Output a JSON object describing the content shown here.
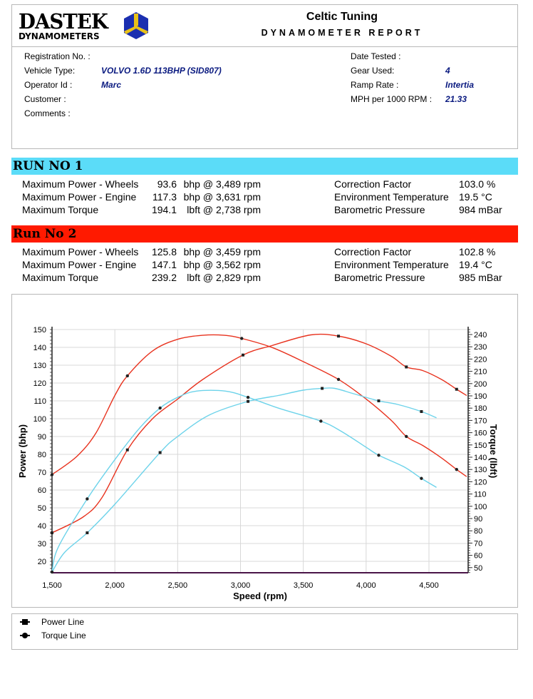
{
  "header": {
    "logo_text": "DASTEK",
    "logo_sub": "DYNAMOMETERS",
    "company": "Celtic Tuning",
    "report_title": "DYNAMOMETER REPORT"
  },
  "info": {
    "left": [
      {
        "label": "Registration No. :",
        "value": ""
      },
      {
        "label": "Vehicle Type:",
        "value": "VOLVO 1.6D 113BHP (SID807)"
      },
      {
        "label": "Operator Id :",
        "value": "Marc"
      },
      {
        "label": "Customer :",
        "value": ""
      },
      {
        "label": "Comments :",
        "value": ""
      }
    ],
    "right": [
      {
        "label": "Date Tested :",
        "value": ""
      },
      {
        "label": "Gear Used:",
        "value": "4"
      },
      {
        "label": "Ramp Rate :",
        "value": "Intertia"
      },
      {
        "label": "MPH per 1000 RPM :",
        "value": "21.33"
      }
    ]
  },
  "runs": [
    {
      "title": "RUN NO 1",
      "color": "#5bdcf8",
      "stats": [
        {
          "label": "Maximum Power - Wheels",
          "value": "93.6",
          "unit": "bhp @ 3,489 rpm"
        },
        {
          "label": "Maximum Power - Engine",
          "value": "117.3",
          "unit": "bhp @ 3,631 rpm"
        },
        {
          "label": "Maximum Torque",
          "value": "194.1",
          "unit": "lbft @ 2,738 rpm"
        }
      ],
      "env": [
        {
          "label": "Correction Factor",
          "value": "103.0 %"
        },
        {
          "label": "Environment Temperature",
          "value": "19.5 °C"
        },
        {
          "label": "Barometric Pressure",
          "value": "984 mBar"
        }
      ]
    },
    {
      "title": "Run No 2",
      "color": "#ff1a00",
      "stats": [
        {
          "label": "Maximum Power - Wheels",
          "value": "125.8",
          "unit": "bhp @ 3,459 rpm"
        },
        {
          "label": "Maximum Power - Engine",
          "value": "147.1",
          "unit": "bhp @ 3,562 rpm"
        },
        {
          "label": "Maximum Torque",
          "value": "239.2",
          "unit": "lbft @ 2,829 rpm"
        }
      ],
      "env": [
        {
          "label": "Correction Factor",
          "value": "102.8 %"
        },
        {
          "label": "Environment Temperature",
          "value": "19.4 °C"
        },
        {
          "label": "Barometric Pressure",
          "value": "985 mBar"
        }
      ]
    }
  ],
  "chart_data": {
    "type": "line",
    "xlabel": "Speed (rpm)",
    "ylabel": "Power (bhp)",
    "y2label": "Torque (lbft)",
    "xlim": [
      1500,
      4810
    ],
    "ylim": [
      13.6,
      150
    ],
    "y2lim": [
      46,
      244
    ],
    "xticks": [
      1500,
      2000,
      2500,
      3000,
      3500,
      4000,
      4500
    ],
    "xtick_labels": [
      "1,500",
      "2,000",
      "2,500",
      "3,000",
      "3,500",
      "4,000",
      "4,500"
    ],
    "yticks": [
      20,
      30,
      40,
      50,
      60,
      70,
      80,
      90,
      100,
      110,
      120,
      130,
      140,
      150
    ],
    "y2ticks": [
      50,
      60,
      70,
      80,
      90,
      100,
      110,
      120,
      130,
      140,
      150,
      160,
      170,
      180,
      190,
      200,
      210,
      220,
      230,
      240
    ],
    "grid": true,
    "series": [
      {
        "run": "Run No 2",
        "kind": "power",
        "axis": "left",
        "color": "#e8321e",
        "markers": [
          1500,
          2100,
          3020,
          3780,
          4320,
          4720
        ],
        "points": [
          [
            1500,
            36
          ],
          [
            1750,
            45
          ],
          [
            1900,
            56
          ],
          [
            2100,
            82.5
          ],
          [
            2300,
            100
          ],
          [
            2500,
            111
          ],
          [
            2700,
            122
          ],
          [
            3020,
            135.7
          ],
          [
            3250,
            141
          ],
          [
            3560,
            147
          ],
          [
            3780,
            146.3
          ],
          [
            4000,
            142
          ],
          [
            4200,
            135
          ],
          [
            4320,
            129
          ],
          [
            4450,
            127
          ],
          [
            4600,
            122
          ],
          [
            4720,
            116.5
          ],
          [
            4800,
            113
          ]
        ]
      },
      {
        "run": "Run No 2",
        "kind": "torque",
        "axis": "right",
        "color": "#e8321e",
        "markers": [
          1500,
          2100,
          3010,
          3780,
          4320,
          4720
        ],
        "points": [
          [
            1500,
            125.8
          ],
          [
            1700,
            140.9
          ],
          [
            1850,
            159.8
          ],
          [
            2000,
            190.3
          ],
          [
            2100,
            206.3
          ],
          [
            2300,
            226.6
          ],
          [
            2500,
            236.1
          ],
          [
            2700,
            239.4
          ],
          [
            2870,
            239.4
          ],
          [
            3010,
            236.8
          ],
          [
            3250,
            229.5
          ],
          [
            3500,
            217.9
          ],
          [
            3780,
            203.4
          ],
          [
            4000,
            187.4
          ],
          [
            4200,
            170
          ],
          [
            4320,
            156.9
          ],
          [
            4450,
            149.6
          ],
          [
            4600,
            139.4
          ],
          [
            4720,
            130
          ],
          [
            4800,
            124.2
          ]
        ]
      },
      {
        "run": "RUN NO 1",
        "kind": "power",
        "axis": "left",
        "color": "#6dd3ea",
        "markers": [
          1780,
          2360,
          3060,
          3650,
          4100,
          4440
        ],
        "points": [
          [
            1500,
            14
          ],
          [
            1600,
            25
          ],
          [
            1780,
            36
          ],
          [
            2000,
            52
          ],
          [
            2360,
            81
          ],
          [
            2500,
            90
          ],
          [
            2750,
            102
          ],
          [
            3060,
            109.7
          ],
          [
            3300,
            113
          ],
          [
            3500,
            116
          ],
          [
            3650,
            117
          ],
          [
            3750,
            117
          ],
          [
            3900,
            114
          ],
          [
            4100,
            110
          ],
          [
            4250,
            108
          ],
          [
            4440,
            104
          ],
          [
            4560,
            100.5
          ]
        ]
      },
      {
        "run": "RUN NO 1",
        "kind": "torque",
        "axis": "right",
        "color": "#6dd3ea",
        "markers": [
          1500,
          1780,
          2360,
          3060,
          3640,
          4100,
          4440
        ],
        "points": [
          [
            1500,
            46.4
          ],
          [
            1550,
            66.7
          ],
          [
            1780,
            106
          ],
          [
            2000,
            138
          ],
          [
            2200,
            164.1
          ],
          [
            2360,
            180.1
          ],
          [
            2500,
            188.8
          ],
          [
            2650,
            193.9
          ],
          [
            2880,
            193.9
          ],
          [
            3060,
            188.8
          ],
          [
            3300,
            180.1
          ],
          [
            3640,
            169.4
          ],
          [
            3800,
            161.2
          ],
          [
            4000,
            148.1
          ],
          [
            4100,
            141.6
          ],
          [
            4300,
            132.2
          ],
          [
            4440,
            122.7
          ],
          [
            4560,
            115.4
          ]
        ]
      }
    ]
  },
  "legend": [
    {
      "label": "Power Line",
      "icon": "square-marker"
    },
    {
      "label": "Torque Line",
      "icon": "circle-marker"
    }
  ]
}
